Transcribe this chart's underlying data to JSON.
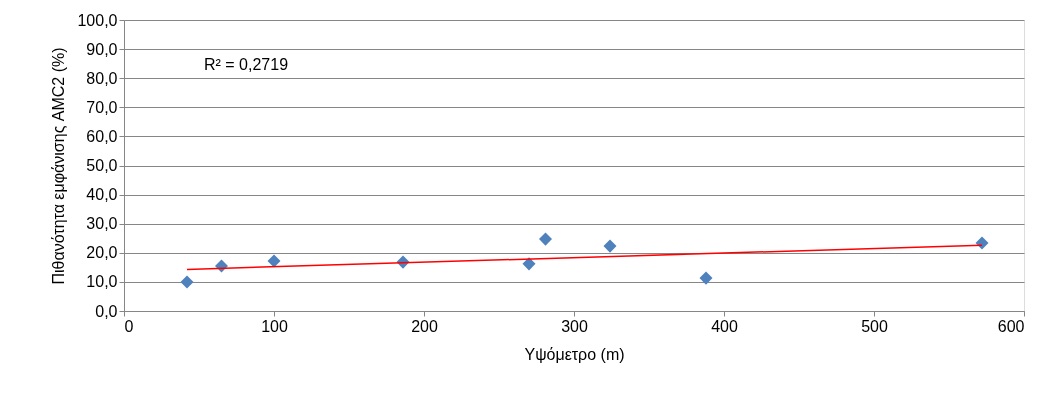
{
  "chart_data": {
    "type": "scatter",
    "xlabel": "Υψόμετρο (m)",
    "ylabel": "Πιθανότητα εμφάνισης AMC2 (%)",
    "series": [
      {
        "color": "#4f81bd",
        "marker": "diamond",
        "x": [
          42,
          65,
          100,
          186,
          270,
          281,
          324,
          388,
          572
        ],
        "values": [
          10.0,
          15.5,
          17.2,
          16.8,
          16.2,
          24.7,
          22.3,
          11.3,
          23.4
        ]
      },
      {
        "type": "line",
        "color": "#ff0000",
        "line_style": "solid",
        "x": [
          42,
          572
        ],
        "values": [
          14.3,
          22.6
        ]
      }
    ],
    "xlim": [
      0,
      600
    ],
    "xticks": [
      0,
      100,
      200,
      300,
      400,
      500,
      600
    ],
    "ylim": [
      0,
      100
    ],
    "yticks": [
      {
        "value": 0,
        "label": "0,0"
      },
      {
        "value": 10,
        "label": "10,0"
      },
      {
        "value": 20,
        "label": "20,0"
      },
      {
        "value": 30,
        "label": "30,0"
      },
      {
        "value": 40,
        "label": "40,0"
      },
      {
        "value": 50,
        "label": "50,0"
      },
      {
        "value": 60,
        "label": "60,0"
      },
      {
        "value": 70,
        "label": "70,0"
      },
      {
        "value": 80,
        "label": "80,0"
      },
      {
        "value": 90,
        "label": "90,0"
      },
      {
        "value": 100,
        "label": "100,0"
      }
    ],
    "grid": "y",
    "legend": false,
    "annotations": [
      "R² = 0,2719"
    ]
  }
}
